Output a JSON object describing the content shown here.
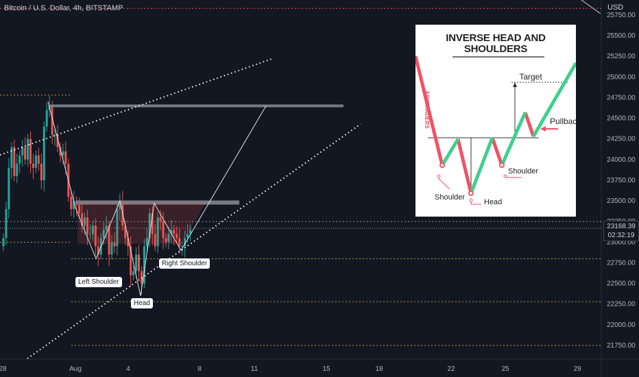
{
  "header": {
    "title": "Bitcoin / U.S. Dollar, 4h, BITSTAMP"
  },
  "currency": "USD",
  "last_price": {
    "value": "23168.39",
    "countdown": "02:32:19"
  },
  "labels": {
    "left_shoulder": "Left Shoulder",
    "head": "Head",
    "right_shoulder": "Right Shoulder"
  },
  "inset": {
    "title_line1": "INVERSE HEAD AND",
    "title_line2": "SHOULDERS",
    "watermark": "ASKTRADERS",
    "target": "Target",
    "pullback": "Pullback",
    "shoulder_left": "Shoulder",
    "shoulder_right": "Shoulder",
    "head": "Head"
  },
  "colors": {
    "background": "#131722",
    "up": "#26a69a",
    "down": "#ef5350",
    "level_orange": "#c79a3b",
    "inset_green": "#3fcf8e",
    "inset_red": "#ef5364"
  },
  "chart_data": {
    "type": "candlestick",
    "title": "Bitcoin / U.S. Dollar, 4h, BITSTAMP",
    "xlabel": "",
    "ylabel": "",
    "ylim": [
      21500,
      25900
    ],
    "x_ticks": [
      "28",
      "Aug",
      "4",
      "8",
      "11",
      "15",
      "18",
      "22",
      "25",
      "29"
    ],
    "y_ticks": [
      21750,
      22000,
      22250,
      22500,
      22750,
      23000,
      23250,
      23500,
      23750,
      24000,
      24250,
      24500,
      24750,
      25000,
      25250,
      25500,
      25750
    ],
    "candles_close": [
      23050,
      23400,
      23900,
      24150,
      23800,
      23950,
      24050,
      24150,
      24000,
      24250,
      23950,
      23900,
      24050,
      23950,
      23750,
      24400,
      24600,
      24650,
      24300,
      24300,
      24150,
      24050,
      24100,
      23950,
      23550,
      23400,
      23500,
      23450,
      23350,
      23200,
      23300,
      23100,
      23100,
      23200,
      22950,
      22850,
      23050,
      23150,
      23200,
      22850,
      23000,
      22950,
      23400,
      23500,
      23200,
      23050,
      22950,
      22600,
      22650,
      22850,
      22650,
      22500,
      22950,
      23050,
      23350,
      23100,
      22950,
      23300,
      23250,
      23050,
      23000,
      23100,
      23150,
      23100,
      23050,
      22950,
      22950,
      23050,
      23100,
      23150
    ],
    "current_price": 23168.39,
    "resistance_levels": [
      24650,
      23480
    ],
    "horizontal_dotted_levels": [
      25830,
      24780,
      23250,
      23000,
      22800,
      22280,
      21750
    ],
    "annotations": [
      "Left Shoulder",
      "Head",
      "Right Shoulder"
    ]
  }
}
